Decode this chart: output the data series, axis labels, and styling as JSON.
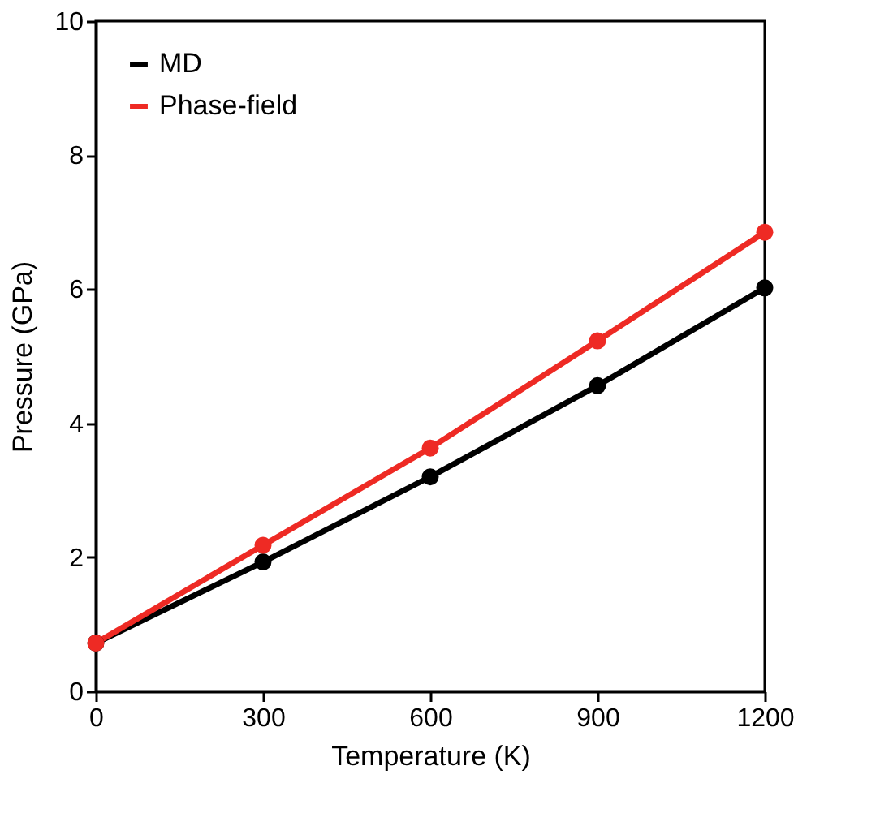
{
  "chart_data": {
    "type": "line",
    "xlabel": "Temperature (K)",
    "ylabel": "Pressure (GPa)",
    "x": [
      0,
      300,
      600,
      900,
      1200
    ],
    "series": [
      {
        "name": "MD",
        "color": "#000000",
        "values": [
          0.72,
          1.93,
          3.2,
          4.56,
          6.02
        ]
      },
      {
        "name": "Phase-field",
        "color": "#ee2a24",
        "values": [
          0.72,
          2.18,
          3.63,
          5.23,
          6.85
        ]
      }
    ],
    "xlim": [
      0,
      1200
    ],
    "xticks": [
      0,
      300,
      600,
      900,
      1200
    ],
    "ylim": [
      0,
      10
    ],
    "yticks": [
      0,
      2,
      4,
      6,
      8,
      10
    ],
    "grid": false,
    "legend": "top left",
    "marker": "circle",
    "line_style": "solid"
  }
}
